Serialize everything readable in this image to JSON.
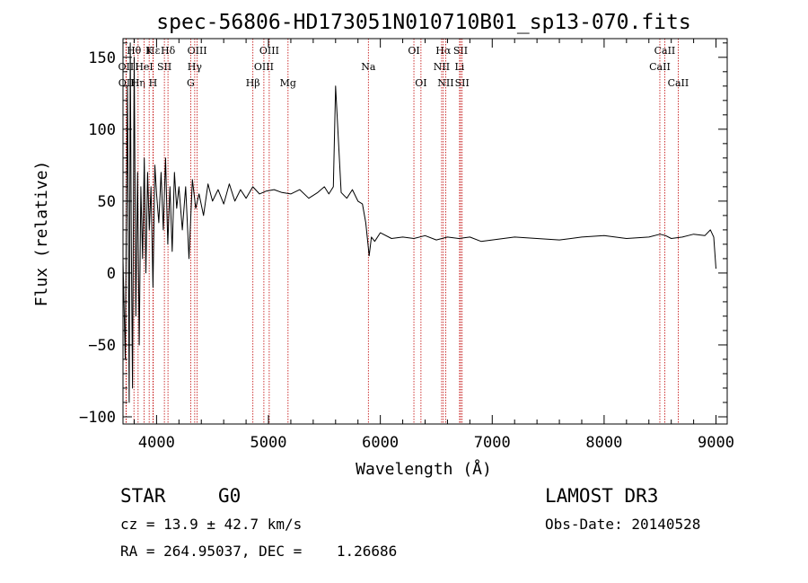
{
  "chart_data": {
    "type": "line",
    "title": "spec-56806-HD173051N010710B01_sp13-070.fits",
    "xlabel": "Wavelength (Å)",
    "ylabel": "Flux (relative)",
    "xlim": [
      3700,
      9100
    ],
    "ylim": [
      -105,
      163
    ],
    "xticks": [
      4000,
      5000,
      6000,
      7000,
      8000,
      9000
    ],
    "xtick_labels": [
      "4000",
      "5000",
      "6000",
      "7000",
      "8000",
      "9000"
    ],
    "yticks": [
      -100,
      -50,
      0,
      50,
      100,
      150
    ],
    "ytick_labels": [
      "−100",
      "−50",
      "0",
      "50",
      "100",
      "150"
    ],
    "grid": false,
    "series": [
      {
        "name": "spectrum",
        "x": [
          3700,
          3720,
          3740,
          3755,
          3765,
          3775,
          3785,
          3800,
          3815,
          3830,
          3845,
          3860,
          3875,
          3890,
          3905,
          3920,
          3935,
          3950,
          3968,
          3985,
          4000,
          4020,
          4040,
          4060,
          4080,
          4100,
          4120,
          4140,
          4160,
          4180,
          4200,
          4230,
          4260,
          4290,
          4320,
          4350,
          4380,
          4420,
          4460,
          4500,
          4550,
          4600,
          4650,
          4700,
          4750,
          4800,
          4860,
          4920,
          4980,
          5050,
          5120,
          5200,
          5280,
          5360,
          5440,
          5500,
          5540,
          5580,
          5600,
          5650,
          5700,
          5750,
          5800,
          5840,
          5870,
          5900,
          5920,
          5950,
          6000,
          6100,
          6200,
          6300,
          6400,
          6500,
          6600,
          6700,
          6800,
          6900,
          7000,
          7200,
          7400,
          7600,
          7800,
          8000,
          8200,
          8400,
          8500,
          8550,
          8600,
          8700,
          8800,
          8900,
          8950,
          8980,
          9000
        ],
        "values": [
          10,
          -60,
          130,
          -90,
          160,
          20,
          -80,
          150,
          -30,
          70,
          -50,
          60,
          10,
          80,
          0,
          70,
          30,
          60,
          -10,
          75,
          55,
          35,
          70,
          30,
          80,
          20,
          60,
          15,
          70,
          45,
          60,
          30,
          60,
          10,
          65,
          45,
          55,
          40,
          62,
          50,
          58,
          48,
          62,
          50,
          58,
          52,
          60,
          55,
          57,
          58,
          56,
          55,
          58,
          52,
          56,
          60,
          55,
          60,
          130,
          56,
          52,
          58,
          50,
          48,
          35,
          12,
          25,
          22,
          28,
          24,
          25,
          24,
          26,
          23,
          25,
          24,
          25,
          22,
          23,
          25,
          24,
          23,
          25,
          26,
          24,
          25,
          27,
          26,
          24,
          25,
          27,
          26,
          30,
          25,
          3
        ]
      }
    ],
    "lines": [
      {
        "label": "Hε",
        "x": 3970,
        "row": 0
      },
      {
        "label": "OII",
        "x": 3727,
        "row": 1
      },
      {
        "label": "OII",
        "x": 3729,
        "row": 2
      },
      {
        "label": "Hθ",
        "x": 3798,
        "row": 0
      },
      {
        "label": "Hη",
        "x": 3835,
        "row": 2
      },
      {
        "label": "HeI",
        "x": 3889,
        "row": 1
      },
      {
        "label": "K",
        "x": 3934,
        "row": 0
      },
      {
        "label": "H",
        "x": 3968,
        "row": 2
      },
      {
        "label": "SII",
        "x": 4070,
        "row": 1
      },
      {
        "label": "Hδ",
        "x": 4102,
        "row": 0
      },
      {
        "label": "OIII",
        "x": 4363,
        "row": 0
      },
      {
        "label": "Hγ",
        "x": 4341,
        "row": 1
      },
      {
        "label": "G",
        "x": 4305,
        "row": 2
      },
      {
        "label": "Hβ",
        "x": 4861,
        "row": 2
      },
      {
        "label": "OIII",
        "x": 5007,
        "row": 0
      },
      {
        "label": "OIII",
        "x": 4959,
        "row": 1
      },
      {
        "label": "Mg",
        "x": 5175,
        "row": 2
      },
      {
        "label": "Na",
        "x": 5893,
        "row": 1
      },
      {
        "label": "OI",
        "x": 6300,
        "row": 0
      },
      {
        "label": "OI",
        "x": 6363,
        "row": 2
      },
      {
        "label": "Hα",
        "x": 6563,
        "row": 0
      },
      {
        "label": "NII",
        "x": 6548,
        "row": 1
      },
      {
        "label": "NII",
        "x": 6584,
        "row": 2
      },
      {
        "label": "SII",
        "x": 6717,
        "row": 0
      },
      {
        "label": "Li",
        "x": 6708,
        "row": 1
      },
      {
        "label": "SII",
        "x": 6731,
        "row": 2
      },
      {
        "label": "CaII",
        "x": 8542,
        "row": 0
      },
      {
        "label": "CaII",
        "x": 8498,
        "row": 1
      },
      {
        "label": "CaII",
        "x": 8662,
        "row": 2
      }
    ]
  },
  "info": {
    "class_label": "STAR",
    "subclass": "G0",
    "survey": "LAMOST DR3",
    "cz_text": "cz = 13.9 ± 42.7 km/s",
    "obs_date": "Obs-Date: 20140528",
    "coords": "RA = 264.95037, DEC =    1.26686"
  },
  "colors": {
    "line_marker": "#c00000",
    "spectrum": "#000000",
    "axes": "#000000"
  }
}
